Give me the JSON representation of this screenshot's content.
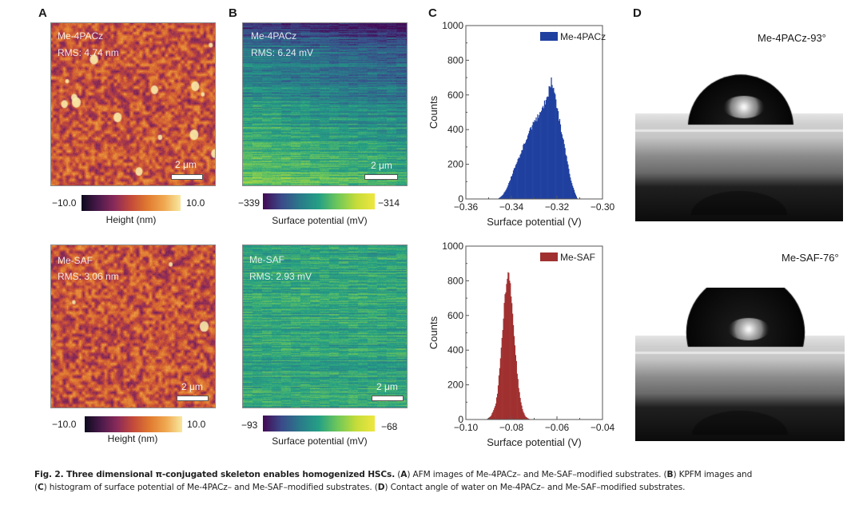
{
  "figure": {
    "panels": {
      "A": {
        "letter": "A",
        "images": [
          {
            "sample": "Me-4PACz",
            "rms": "RMS: 4.74 nm",
            "scale": "2 μm"
          },
          {
            "sample": "Me-SAF",
            "rms": "RMS: 3.06 nm",
            "scale": "2 μm"
          }
        ],
        "colorbars": [
          {
            "min": "−10.0",
            "max": "10.0",
            "title": "Height (nm)"
          },
          {
            "min": "−10.0",
            "max": "10.0",
            "title": "Height (nm)"
          }
        ],
        "colormap": [
          "#0d0a1e",
          "#4a1a4a",
          "#8a2a5a",
          "#c44a3a",
          "#e07a30",
          "#f0a850",
          "#f8e8a0"
        ]
      },
      "B": {
        "letter": "B",
        "images": [
          {
            "sample": "Me-4PACz",
            "rms": "RMS: 6.24 mV",
            "scale": "2 μm"
          },
          {
            "sample": "Me-SAF",
            "rms": "RMS: 2.93 mV",
            "scale": "2 μm"
          }
        ],
        "colorbars": [
          {
            "min": "−339",
            "max": "−314",
            "title": "Surface potential (mV)"
          },
          {
            "min": "−93",
            "max": "−68",
            "title": "Surface potential (mV)"
          }
        ],
        "colormap": [
          "#440a54",
          "#3b4a8a",
          "#2a7a8a",
          "#24a084",
          "#6ec75a",
          "#c4dc3a",
          "#f0e640"
        ]
      },
      "C": {
        "letter": "C"
      },
      "D": {
        "letter": "D",
        "images": [
          {
            "label": "Me-4PACz-93°",
            "contact_angle_deg": 93
          },
          {
            "label": "Me-SAF-76°",
            "contact_angle_deg": 76
          }
        ]
      }
    },
    "caption": {
      "bold_lead": "Fig. 2. Three dimensional π-conjugated skeleton enables homogenized HSCs.",
      "segments": [
        {
          "bold": "A",
          "text": " AFM images of Me-4PACz– and Me-SAF–modified substrates. ("
        },
        {
          "bold": "B",
          "text": ") KPFM images and"
        },
        {
          "bold": "C",
          "text": ") histogram of surface potential of Me-4PACz– and Me-SAF–modified substrates. ("
        },
        {
          "bold": "D",
          "text": ") Contact angle of water on Me-4PACz– and Me-SAF–modified substrates."
        }
      ],
      "line1_a": " (",
      "line1_b": ") AFM images of Me-4PACz– and Me-SAF–modified substrates. (",
      "line1_c": ") KPFM images and",
      "line2_a": "(",
      "line2_b": ") histogram of surface potential of Me-4PACz– and Me-SAF–modified substrates. (",
      "line2_c": ") Contact angle of water on Me-4PACz– and Me-SAF–modified substrates.",
      "letters": [
        "A",
        "B",
        "C",
        "D"
      ]
    }
  },
  "chart_data": [
    {
      "type": "bar",
      "title": "",
      "xlabel": "Surface potential (V)",
      "ylabel": "Counts",
      "legend": "Me-4PACz",
      "legend_position": "top-right",
      "color": "#2040a0",
      "xlim": [
        -0.36,
        -0.3
      ],
      "ylim": [
        0,
        1000
      ],
      "xticks": [
        "−0.36",
        "−0.34",
        "−0.32",
        "−0.30"
      ],
      "yticks": [
        "0",
        "200",
        "400",
        "600",
        "800",
        "1000"
      ],
      "x": [
        -0.346,
        -0.344,
        -0.342,
        -0.34,
        -0.338,
        -0.336,
        -0.334,
        -0.332,
        -0.33,
        -0.328,
        -0.326,
        -0.324,
        -0.3225,
        -0.321,
        -0.32,
        -0.318,
        -0.316,
        -0.314,
        -0.312,
        -0.311
      ],
      "values": [
        0,
        20,
        60,
        130,
        200,
        260,
        330,
        390,
        440,
        480,
        530,
        600,
        680,
        620,
        520,
        390,
        250,
        110,
        30,
        0
      ]
    },
    {
      "type": "bar",
      "title": "",
      "xlabel": "Surface potential (V)",
      "ylabel": "Counts",
      "legend": "Me-SAF",
      "legend_position": "top-right",
      "color": "#a03030",
      "xlim": [
        -0.1,
        -0.04
      ],
      "ylim": [
        0,
        1000
      ],
      "xticks": [
        "−0.10",
        "−0.08",
        "−0.06",
        "−0.04"
      ],
      "yticks": [
        "0",
        "200",
        "400",
        "600",
        "800",
        "1000"
      ],
      "x": [
        -0.091,
        -0.089,
        -0.087,
        -0.086,
        -0.085,
        -0.084,
        -0.083,
        -0.082,
        -0.0815,
        -0.081,
        -0.08,
        -0.079,
        -0.078,
        -0.077,
        -0.076,
        -0.075,
        -0.074,
        -0.073,
        -0.072,
        -0.071
      ],
      "values": [
        0,
        20,
        80,
        170,
        320,
        500,
        680,
        800,
        845,
        820,
        700,
        520,
        350,
        200,
        110,
        50,
        20,
        8,
        2,
        0
      ]
    }
  ]
}
